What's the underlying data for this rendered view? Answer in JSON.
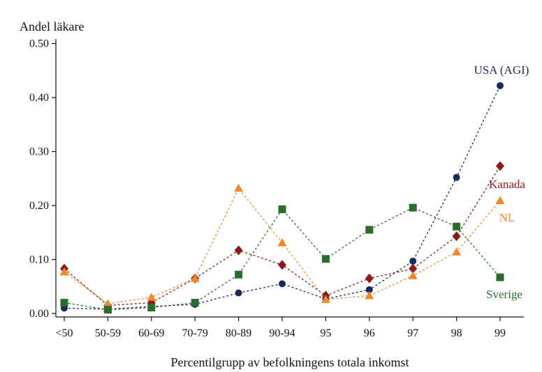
{
  "chart_data": {
    "type": "line",
    "ylabel": "Andel läkare",
    "xlabel": "Percentilgrupp av befolkningens totala inkomst",
    "categories": [
      "<50",
      "50-59",
      "60-69",
      "70-79",
      "80-89",
      "90-94",
      "95",
      "96",
      "97",
      "98",
      "99"
    ],
    "yticks": [
      "0.00",
      "0.10",
      "0.20",
      "0.30",
      "0.40",
      "0.50"
    ],
    "ylim": [
      0,
      0.5
    ],
    "grid": false,
    "series": [
      {
        "name": "USA (AGI)",
        "color": "#1a2a5a",
        "marker": "circle",
        "values": [
          0.01,
          0.008,
          0.013,
          0.017,
          0.038,
          0.055,
          0.027,
          0.044,
          0.097,
          0.252,
          0.422
        ]
      },
      {
        "name": "Kanada",
        "color": "#8b1a1a",
        "marker": "diamond",
        "values": [
          0.083,
          0.015,
          0.02,
          0.065,
          0.117,
          0.09,
          0.033,
          0.065,
          0.083,
          0.143,
          0.273
        ]
      },
      {
        "name": "NL",
        "color": "#f0892a",
        "marker": "triangle",
        "values": [
          0.077,
          0.018,
          0.03,
          0.065,
          0.232,
          0.131,
          0.026,
          0.033,
          0.07,
          0.114,
          0.209
        ]
      },
      {
        "name": "Sverige",
        "color": "#2b6b2b",
        "marker": "square",
        "values": [
          0.02,
          0.007,
          0.011,
          0.02,
          0.072,
          0.193,
          0.101,
          0.155,
          0.196,
          0.161,
          0.067
        ]
      }
    ]
  }
}
